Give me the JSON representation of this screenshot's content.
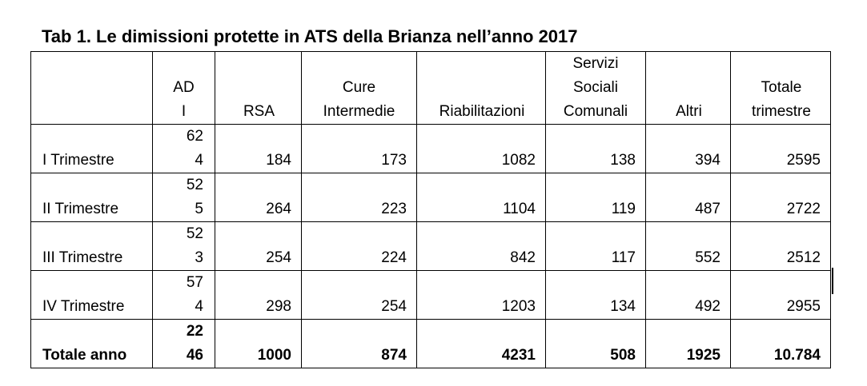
{
  "title": "Tab 1. Le dimissioni protette in ATS della Brianza nell’anno 2017",
  "table": {
    "header": [
      "ADI",
      "RSA",
      "Cure Intermedie",
      "Riabilitazioni",
      "Servizi Sociali Comunali",
      "Altri",
      "Totale trimestre"
    ],
    "rows": [
      [
        "I Trimestre",
        "624",
        "184",
        "173",
        "1082",
        "138",
        "394",
        "2595"
      ],
      [
        "II Trimestre",
        "525",
        "264",
        "223",
        "1104",
        "119",
        "487",
        "2722"
      ],
      [
        "III Trimestre",
        "523",
        "254",
        "224",
        "842",
        "117",
        "552",
        "2512"
      ],
      [
        "IV Trimestre",
        "574",
        "298",
        "254",
        "1203",
        "134",
        "492",
        "2955"
      ],
      [
        "Totale anno",
        "2246",
        "1000",
        "874",
        "4231",
        "508",
        "1925",
        "10.784"
      ]
    ]
  }
}
